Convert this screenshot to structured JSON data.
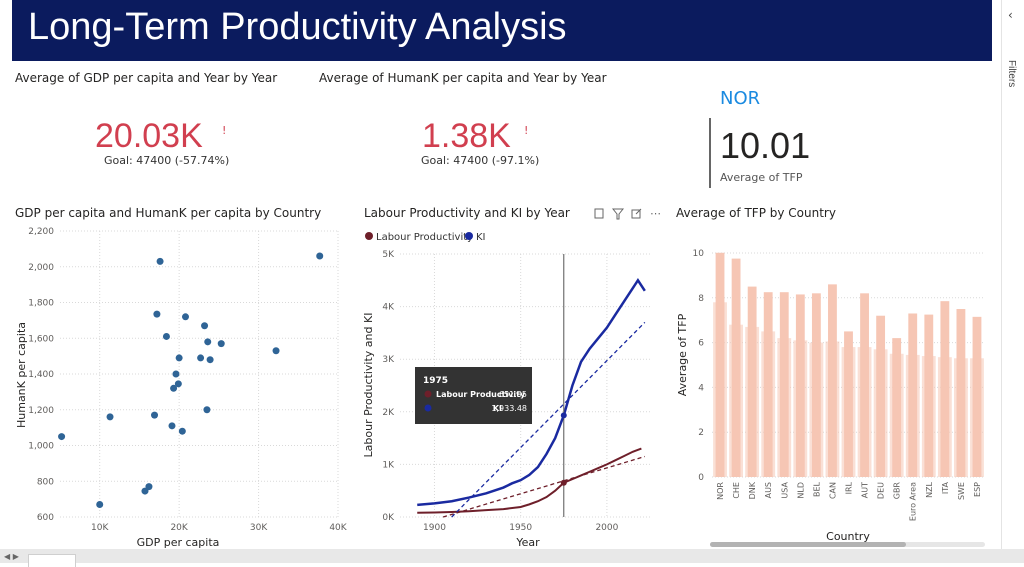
{
  "header": {
    "title": "Long-Term Productivity Analysis"
  },
  "kpi_gdp": {
    "title": "Average of GDP per capita and Year by Year",
    "value": "20.03K",
    "indicator": "!",
    "goal": "Goal: 47400 (-57.74%)"
  },
  "kpi_humank": {
    "title": "Average of HumanK per capita and Year by Year",
    "value": "1.38K",
    "indicator": "!",
    "goal": "Goal: 47400 (-97.1%)"
  },
  "kpi_tfp": {
    "country": "NOR",
    "value": "10.01",
    "label": "Average of TFP"
  },
  "colors": {
    "banner": "#0b1b5e",
    "kpi_red": "#d13f4f",
    "scatter": "#2f6496",
    "lp": "#6e1f2a",
    "ki": "#1a2aa0",
    "tfp_bar": "#f6c6b4",
    "accent_blue": "#1a8ae0"
  },
  "chart_data": [
    {
      "type": "scatter",
      "title": "GDP per capita and HumanK per capita by Country",
      "xlabel": "GDP per capita",
      "ylabel": "HumanK per capita",
      "xlim": [
        5000,
        40000
      ],
      "ylim": [
        600,
        2200
      ],
      "x_ticks": [
        "10K",
        "20K",
        "30K",
        "40K"
      ],
      "y_ticks": [
        "600",
        "800",
        "1,000",
        "1,200",
        "1,400",
        "1,600",
        "1,800",
        "2,000",
        "2,200"
      ],
      "points": [
        {
          "x": 5200,
          "y": 1050
        },
        {
          "x": 10000,
          "y": 670
        },
        {
          "x": 11300,
          "y": 1160
        },
        {
          "x": 15700,
          "y": 745
        },
        {
          "x": 16200,
          "y": 770
        },
        {
          "x": 16900,
          "y": 1170
        },
        {
          "x": 17200,
          "y": 1735
        },
        {
          "x": 17600,
          "y": 2030
        },
        {
          "x": 18400,
          "y": 1610
        },
        {
          "x": 19100,
          "y": 1110
        },
        {
          "x": 19300,
          "y": 1320
        },
        {
          "x": 19600,
          "y": 1400
        },
        {
          "x": 19900,
          "y": 1345
        },
        {
          "x": 20000,
          "y": 1490
        },
        {
          "x": 20400,
          "y": 1080
        },
        {
          "x": 20800,
          "y": 1720
        },
        {
          "x": 22700,
          "y": 1490
        },
        {
          "x": 23200,
          "y": 1670
        },
        {
          "x": 23500,
          "y": 1200
        },
        {
          "x": 23600,
          "y": 1580
        },
        {
          "x": 23900,
          "y": 1480
        },
        {
          "x": 25300,
          "y": 1570
        },
        {
          "x": 32200,
          "y": 1530
        },
        {
          "x": 37700,
          "y": 2060
        }
      ]
    },
    {
      "type": "line",
      "title": "Labour Productivity and KI by Year",
      "xlabel": "Year",
      "ylabel": "Labour Productivity and KI",
      "xlim": [
        1880,
        2025
      ],
      "ylim": [
        0,
        5000
      ],
      "x_ticks": [
        "1900",
        "1950",
        "2000"
      ],
      "y_ticks": [
        "0K",
        "1K",
        "2K",
        "3K",
        "4K",
        "5K"
      ],
      "legend": [
        "Labour Productivity",
        "KI"
      ],
      "series": [
        {
          "name": "Labour Productivity",
          "x": [
            1890,
            1900,
            1910,
            1920,
            1930,
            1940,
            1950,
            1955,
            1960,
            1965,
            1970,
            1975,
            1980,
            1985,
            1990,
            1995,
            2000,
            2005,
            2010,
            2015,
            2020
          ],
          "values": [
            80,
            85,
            95,
            110,
            130,
            150,
            190,
            240,
            300,
            380,
            500,
            652,
            720,
            790,
            860,
            930,
            1000,
            1080,
            1160,
            1240,
            1300
          ]
        },
        {
          "name": "KI",
          "x": [
            1890,
            1900,
            1910,
            1920,
            1930,
            1940,
            1945,
            1950,
            1955,
            1960,
            1965,
            1970,
            1975,
            1980,
            1985,
            1990,
            1995,
            2000,
            2005,
            2010,
            2015,
            2018,
            2022
          ],
          "values": [
            230,
            260,
            300,
            370,
            450,
            560,
            640,
            700,
            800,
            950,
            1200,
            1500,
            1933,
            2500,
            2950,
            3200,
            3400,
            3600,
            3850,
            4100,
            4350,
            4500,
            4300
          ]
        },
        {
          "name": "Labour Productivity trend",
          "x": [
            1905,
            2022
          ],
          "values": [
            0,
            1150
          ]
        },
        {
          "name": "KI trend",
          "x": [
            1910,
            2022
          ],
          "values": [
            0,
            3700
          ]
        }
      ],
      "marker_year": 1975,
      "tooltip": {
        "year": "1975",
        "rows": [
          {
            "label": "Labour Productivity",
            "value": "651.95"
          },
          {
            "label": "KI",
            "value": "1,933.48"
          }
        ]
      }
    },
    {
      "type": "bar",
      "title": "Average of TFP by Country",
      "xlabel": "Country",
      "ylabel": "Average of TFP",
      "ylim": [
        0,
        10
      ],
      "y_ticks": [
        "0",
        "2",
        "4",
        "6",
        "8",
        "10"
      ],
      "categories": [
        "NOR",
        "CHE",
        "DNK",
        "AUS",
        "USA",
        "NLD",
        "BEL",
        "CAN",
        "IRL",
        "AUT",
        "DEU",
        "GBR",
        "Euro Area",
        "NZL",
        "ITA",
        "SWE",
        "ESP"
      ],
      "values": [
        10.01,
        9.75,
        8.5,
        8.25,
        8.25,
        8.15,
        8.2,
        8.6,
        6.5,
        8.2,
        7.2,
        6.2,
        7.3,
        7.25,
        7.85,
        7.5,
        7.15
      ],
      "secondary_values": [
        7.8,
        6.8,
        6.7,
        6.5,
        6.2,
        6.1,
        6.0,
        6.05,
        5.8,
        5.8,
        5.7,
        5.5,
        5.45,
        5.4,
        5.35,
        5.3,
        5.3
      ]
    }
  ]
}
